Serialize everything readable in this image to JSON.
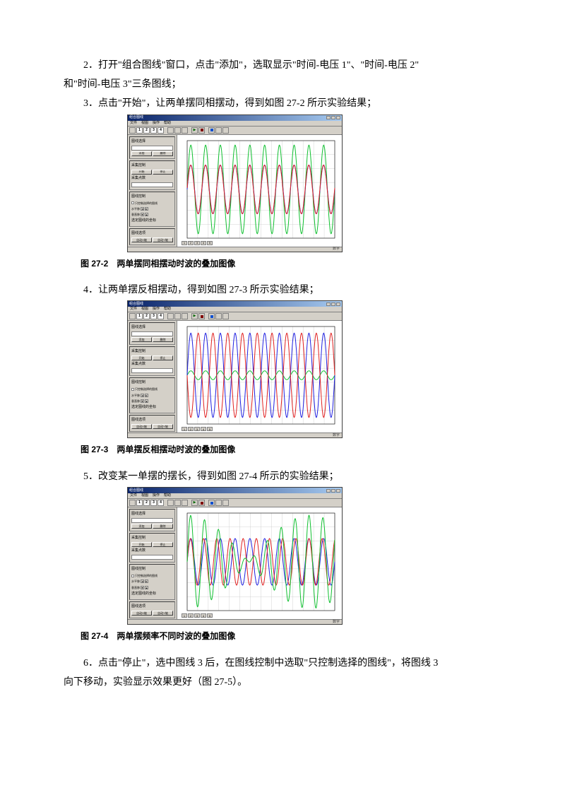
{
  "text": {
    "p2a": "2．打开\"组合图线\"窗口，点击\"添加\"，选取显示\"时间-电压 1\"、\"时间-电压 2\"",
    "p2b": "和\"时间-电压 3\"三条图线；",
    "p3": "3．点击\"开始\"，让两单摆同相摆动，得到如图 27-2 所示实验结果；",
    "cap2": "图 27-2　两单摆同相摆动时波的叠加图像",
    "p4": "4．让两单摆反相摆动，得到如图 27-3 所示实验结果；",
    "cap3": "图 27-3　两单摆反相摆动时波的叠加图像",
    "p5": "5．改变某一单摆的摆长，得到如图 27-4 所示的实验结果；",
    "cap4": "图 27-4　两单摆频率不同时波的叠加图像",
    "p6a": "6．点击\"停止\"，选中图线 3 后，在图线控制中选取\"只控制选择的图线\"，将图线 3",
    "p6b": "向下移动，实验显示效果更好（图 27-5）。"
  },
  "app": {
    "title": "组合图线",
    "menus": [
      "文件",
      "视图",
      "操作",
      "帮助"
    ],
    "tabs": [
      "1",
      "2",
      "3",
      "4"
    ],
    "status": "数字",
    "sidebar": {
      "sel_title": "图线选择",
      "add": "添加",
      "del": "删除",
      "ctl_title": "采集控制",
      "start": "开始",
      "stop": "停止",
      "pts": "采集点数",
      "line_title": "图线控制",
      "only_sel": "只控制选择的图线",
      "hshift": "水平移",
      "vshift": "垂直移",
      "coord": "选定图线的坐标",
      "opts_title": "图线选项",
      "autox": "自动X轴",
      "autoy": "自动Y轴"
    }
  },
  "chart_common": {
    "bg": "#ffffff",
    "frame": "#000000",
    "grid": "#c8c8c8",
    "axis_fontsize": 4,
    "nx_ticks": 14,
    "ny_ticks": 7
  },
  "charts": {
    "fig2": {
      "freqs": [
        1,
        1,
        1
      ],
      "amps": [
        0.55,
        0.55,
        1.0
      ],
      "phases": [
        0,
        0.06,
        0
      ],
      "colors": [
        "#2020e0",
        "#e02020",
        "#10c030"
      ],
      "line_width": 1.0,
      "cycles": 10,
      "yrange": 1.1
    },
    "fig3": {
      "freqs": [
        1,
        1,
        1
      ],
      "amps": [
        0.95,
        0.95,
        0.1
      ],
      "phases": [
        0,
        3.14159,
        0
      ],
      "colors": [
        "#2020e0",
        "#e02020",
        "#10c030"
      ],
      "line_width": 1.0,
      "cycles": 10,
      "yrange": 1.1
    },
    "fig4": {
      "freqs": [
        1.0,
        1.12,
        1.0
      ],
      "amps": [
        0.55,
        0.55,
        0
      ],
      "phases": [
        0,
        0,
        0
      ],
      "sum_index_a": 0,
      "sum_index_b": 1,
      "sum_color": "#10c030",
      "colors": [
        "#2020e0",
        "#e02020",
        "#10c030"
      ],
      "line_width": 1.0,
      "cycles": 10,
      "yrange": 1.15
    }
  }
}
